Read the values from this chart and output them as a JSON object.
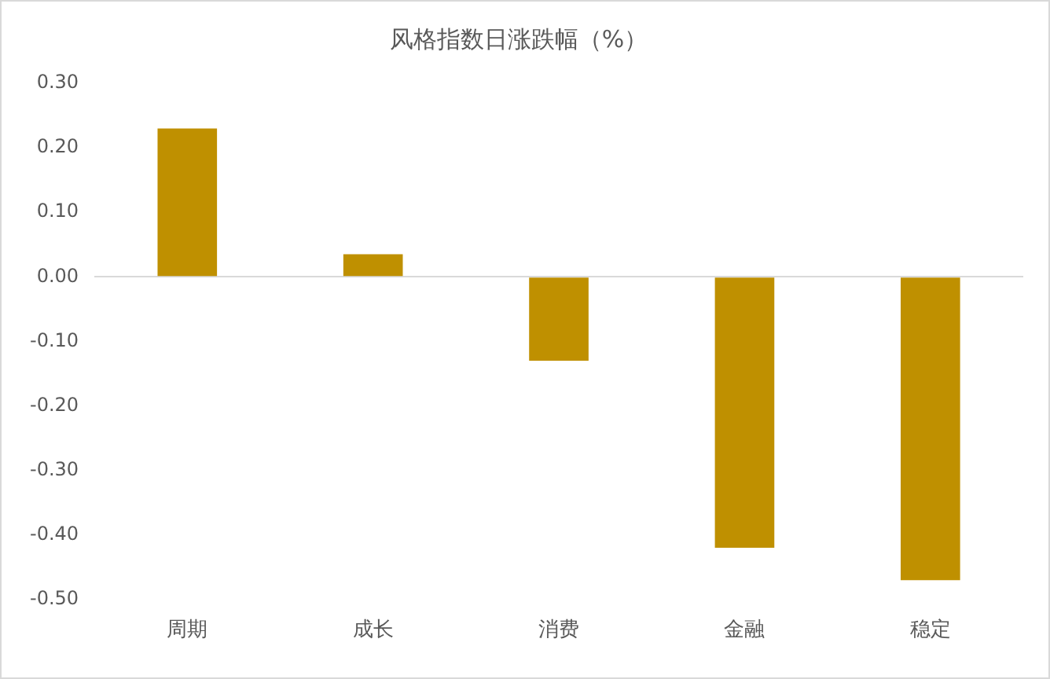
{
  "chart_data": {
    "type": "bar",
    "title": "风格指数日涨跌幅（%）",
    "categories": [
      "周期",
      "成长",
      "消费",
      "金融",
      "稳定"
    ],
    "values": [
      0.23,
      0.035,
      -0.13,
      -0.42,
      -0.47
    ],
    "color": "#bf9000",
    "ylim": [
      -0.5,
      0.3
    ],
    "yticks": [
      {
        "value": -0.5,
        "label": "-0.50"
      },
      {
        "value": -0.4,
        "label": "-0.40"
      },
      {
        "value": -0.3,
        "label": "-0.30"
      },
      {
        "value": -0.2,
        "label": "-0.20"
      },
      {
        "value": -0.1,
        "label": "-0.10"
      },
      {
        "value": 0,
        "label": "0.00"
      },
      {
        "value": 0.1,
        "label": "0.10"
      },
      {
        "value": 0.2,
        "label": "0.20"
      },
      {
        "value": 0.3,
        "label": "0.30"
      }
    ],
    "legend": false
  }
}
